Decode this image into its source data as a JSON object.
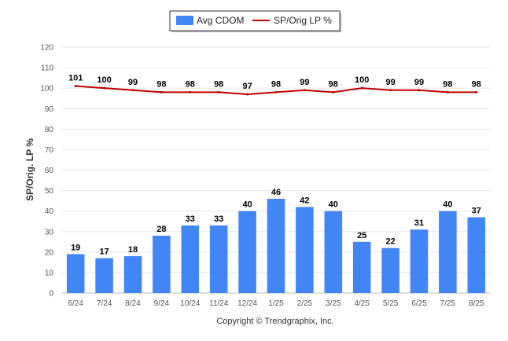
{
  "chart_data": {
    "type": "bar",
    "categories": [
      "6/24",
      "7/24",
      "8/24",
      "9/24",
      "10/24",
      "11/24",
      "12/24",
      "1/25",
      "2/25",
      "3/25",
      "4/25",
      "5/25",
      "6/25",
      "7/25",
      "8/25"
    ],
    "series": [
      {
        "name": "Avg CDOM",
        "type": "bar",
        "color": "#4285f4",
        "values": [
          19,
          17,
          18,
          28,
          33,
          33,
          40,
          46,
          42,
          40,
          25,
          22,
          31,
          40,
          37
        ]
      },
      {
        "name": "SP/Orig LP %",
        "type": "line",
        "color": "#c00000",
        "values": [
          101,
          100,
          99,
          98,
          98,
          98,
          97,
          98,
          99,
          98,
          100,
          99,
          99,
          98,
          98
        ]
      }
    ],
    "ylabel": "SP/Orig. LP %",
    "xlabel": "",
    "ylim": [
      0,
      120
    ],
    "yticks": [
      0,
      10,
      20,
      30,
      40,
      50,
      60,
      70,
      80,
      90,
      100,
      110,
      120
    ],
    "grid": true,
    "legend": "top-center",
    "credit": "Copyright © Trendgraphix, Inc."
  }
}
